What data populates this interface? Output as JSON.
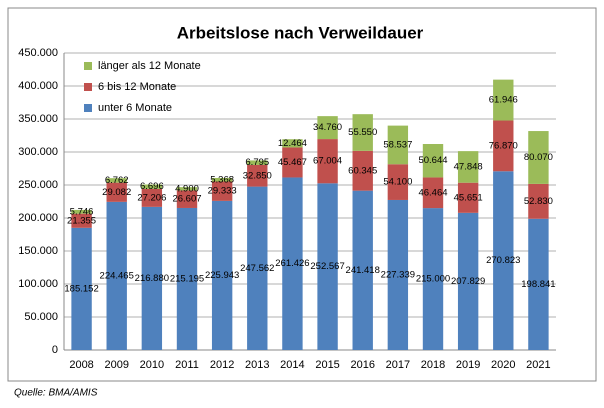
{
  "chart_data": {
    "type": "stacked_bar",
    "title": "Arbeitslose nach Verweildauer",
    "source": "Quelle: BMA/AMIS",
    "categories": [
      "2008",
      "2009",
      "2010",
      "2011",
      "2012",
      "2013",
      "2014",
      "2015",
      "2016",
      "2017",
      "2018",
      "2019",
      "2020",
      "2021"
    ],
    "series": [
      {
        "name": "unter 6 Monate",
        "color": "#4f81bd",
        "values": [
          185152,
          224465,
          216880,
          215195,
          225943,
          247562,
          261426,
          252567,
          241418,
          227339,
          215000,
          207829,
          270823,
          198841
        ],
        "value_labels": [
          "185.152",
          "224.465",
          "216.880",
          "215.195",
          "225.943",
          "247.562",
          "261.426",
          "252.567",
          "241.418",
          "227.339",
          "215.000",
          "207.829",
          "270.823",
          "198.841"
        ]
      },
      {
        "name": "6 bis 12 Monate",
        "color": "#c0504d",
        "values": [
          21355,
          29082,
          27206,
          26607,
          29333,
          32850,
          45467,
          67004,
          60345,
          54100,
          46464,
          45651,
          76870,
          52830
        ],
        "value_labels": [
          "21.355",
          "29.082",
          "27.206",
          "26.607",
          "29.333",
          "32.850",
          "45.467",
          "67.004",
          "60.345",
          "54.100",
          "46.464",
          "45.651",
          "76.870",
          "52.830"
        ]
      },
      {
        "name": "länger als 12 Monate",
        "color": "#9bbb59",
        "values": [
          5746,
          6762,
          6696,
          4900,
          5368,
          6795,
          12464,
          34760,
          55550,
          58537,
          50644,
          47848,
          61946,
          80070
        ],
        "value_labels": [
          "5.746",
          "6.762",
          "6.696",
          "4.900",
          "5.368",
          "6.795",
          "12.464",
          "34.760",
          "55.550",
          "58.537",
          "50.644",
          "47.848",
          "61.946",
          "80.070"
        ]
      }
    ],
    "ylim": [
      0,
      450000
    ],
    "yticks": [
      0,
      {
        "value": 50000,
        "label": "50.000"
      },
      {
        "value": 100000,
        "label": "100.000"
      },
      {
        "value": 150000,
        "label": "150.000"
      },
      {
        "value": 200000,
        "label": "200.000"
      },
      {
        "value": 250000,
        "label": "250.000"
      },
      {
        "value": 300000,
        "label": "300.000"
      },
      {
        "value": 350000,
        "label": "350.000"
      },
      {
        "value": 400000,
        "label": "400.000"
      },
      {
        "value": 450000,
        "label": "450.000"
      }
    ],
    "grid": true
  }
}
